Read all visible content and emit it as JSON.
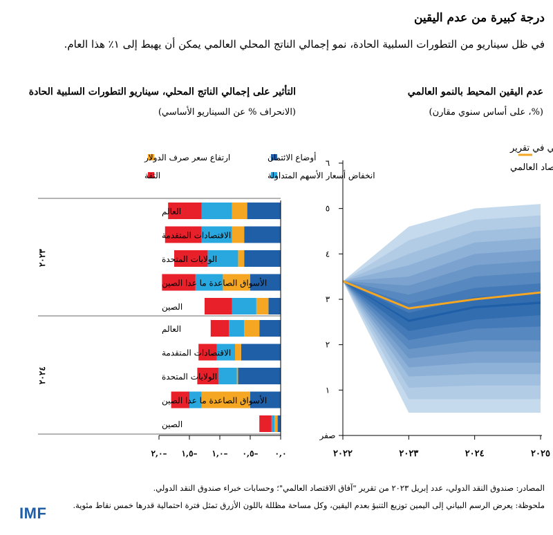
{
  "header": {
    "title": "درجة كبيرة من عدم اليقين",
    "subtitle": "في ظل سيناريو من التطورات السلبية الحادة، نمو إجمالي الناتج المحلي العالمي يمكن أن يهبط إلى ١٪ هذا العام."
  },
  "colors": {
    "credit": "#1f5fa8",
    "equity": "#29a8e0",
    "dollar": "#f5a623",
    "confidence": "#e8202a",
    "baseline": "#f5a623",
    "fan_dark": "#1f5fa8",
    "logo": "#1f5fa8"
  },
  "chart_data": [
    {
      "type": "area",
      "title": "عدم اليقين المحيط بالنمو العالمي",
      "subtitle": "(%، على أساس سنوي مقارن)",
      "x": [
        "٢٠٢٢",
        "٢٠٢٣",
        "٢٠٢٤",
        "٢٠٢٥"
      ],
      "x_values": [
        2022,
        2023,
        2024,
        2025
      ],
      "ylim": [
        0,
        6
      ],
      "y_ticks": [
        0,
        1,
        2,
        3,
        4,
        5,
        6
      ],
      "y_tick_labels": [
        "صفر",
        "١",
        "٢",
        "٣",
        "٤",
        "٥",
        "٦"
      ],
      "legend": {
        "label": "توقعات السيناريو الأساسي في تقرير آفاق الاقتصاد العالمي"
      },
      "baseline": [
        3.4,
        2.8,
        3.0,
        3.15
      ],
      "bands": [
        {
          "lower": [
            3.4,
            0.5,
            0.5,
            0.5
          ],
          "upper": [
            3.4,
            4.6,
            5.0,
            5.1
          ]
        },
        {
          "lower": [
            3.4,
            0.8,
            0.8,
            0.8
          ],
          "upper": [
            3.4,
            4.3,
            4.75,
            4.85
          ]
        },
        {
          "lower": [
            3.4,
            1.05,
            1.1,
            1.1
          ],
          "upper": [
            3.4,
            4.0,
            4.5,
            4.6
          ]
        },
        {
          "lower": [
            3.4,
            1.3,
            1.35,
            1.35
          ],
          "upper": [
            3.4,
            3.75,
            4.25,
            4.35
          ]
        },
        {
          "lower": [
            3.4,
            1.5,
            1.6,
            1.6
          ],
          "upper": [
            3.4,
            3.5,
            4.0,
            4.1
          ]
        },
        {
          "lower": [
            3.4,
            1.7,
            1.85,
            1.85
          ],
          "upper": [
            3.4,
            3.3,
            3.75,
            3.85
          ]
        },
        {
          "lower": [
            3.4,
            1.9,
            2.1,
            2.1
          ],
          "upper": [
            3.4,
            3.1,
            3.5,
            3.6
          ]
        },
        {
          "lower": [
            3.4,
            2.1,
            2.35,
            2.4
          ],
          "upper": [
            3.4,
            2.9,
            3.25,
            3.35
          ]
        },
        {
          "lower": [
            3.4,
            2.3,
            2.55,
            2.65
          ],
          "upper": [
            3.4,
            2.7,
            3.05,
            3.15
          ]
        },
        {
          "lower": [
            3.4,
            2.5,
            2.8,
            2.9
          ],
          "upper": [
            3.4,
            2.55,
            2.85,
            2.95
          ]
        }
      ]
    },
    {
      "type": "bar",
      "title": "التأثير على إجمالي الناتج المحلي، سيناريو التطورات السلبية الحادة",
      "subtitle": "(الانحراف % عن السيناريو الأساسي)",
      "xlim": [
        -2.0,
        0.0
      ],
      "x_ticks": [
        0,
        -0.5,
        -1.0,
        -1.5,
        -2.0
      ],
      "x_tick_labels": [
        "٠,٠",
        "٠,٥–",
        "١,٠–",
        "١,٥–",
        "٢,٠–"
      ],
      "legend": [
        {
          "key": "credit",
          "label": "أوضاع الائتمان"
        },
        {
          "key": "dollar",
          "label": "ارتفاع سعر صرف الدولار"
        },
        {
          "key": "equity",
          "label": "انخفاض أسعار الأسهم المتداولة"
        },
        {
          "key": "confidence",
          "label": "الثقة"
        }
      ],
      "series_order": [
        "credit",
        "dollar",
        "equity",
        "confidence"
      ],
      "groups": [
        {
          "label": "٢٠٢٣",
          "rows": [
            {
              "label": "العالم",
              "values": {
                "credit": -0.55,
                "dollar": -0.25,
                "equity": -0.5,
                "confidence": -0.55
              }
            },
            {
              "label": "الاقتصادات المتقدمة",
              "values": {
                "credit": -0.6,
                "dollar": -0.2,
                "equity": -0.5,
                "confidence": -0.6
              }
            },
            {
              "label": "الولايات المتحدة",
              "values": {
                "credit": -0.6,
                "dollar": -0.1,
                "equity": -0.5,
                "confidence": -0.55
              }
            },
            {
              "label": "الأسواق الصاعدة ما عدا الصين",
              "values": {
                "credit": -0.5,
                "dollar": -0.45,
                "equity": -0.45,
                "confidence": -0.55
              }
            },
            {
              "label": "الصين",
              "values": {
                "credit": -0.2,
                "dollar": -0.2,
                "equity": -0.4,
                "confidence": -0.45
              }
            }
          ]
        },
        {
          "label": "٢٠٢٤",
          "rows": [
            {
              "label": "العالم",
              "values": {
                "credit": -0.35,
                "dollar": -0.25,
                "equity": -0.25,
                "confidence": -0.3
              }
            },
            {
              "label": "الاقتصادات المتقدمة",
              "values": {
                "credit": -0.65,
                "dollar": -0.1,
                "equity": -0.3,
                "confidence": -0.3
              }
            },
            {
              "label": "الولايات المتحدة",
              "values": {
                "credit": -0.7,
                "dollar": -0.02,
                "equity": -0.3,
                "confidence": -0.35
              }
            },
            {
              "label": "الأسواق الصاعدة ما عدا الصين",
              "values": {
                "credit": -0.5,
                "dollar": -0.8,
                "equity": -0.2,
                "confidence": -0.3
              }
            },
            {
              "label": "الصين",
              "values": {
                "credit": -0.05,
                "dollar": -0.05,
                "equity": -0.05,
                "confidence": -0.2
              }
            }
          ]
        }
      ]
    }
  ],
  "footer": {
    "sources": "المصادر: صندوق النقد الدولي، عدد إبريل ٢٠٢٣ من تقرير \"آفاق الاقتصاد العالمي\"؛ وحسابات خبراء صندوق النقد الدولي.",
    "note": "ملحوظة: يعرض الرسم البياني إلى اليمين توزيع التنبؤ بعدم اليقين، وكل مساحة مظللة باللون الأزرق تمثل فترة احتمالية قدرها خمس نقاط مئوية.",
    "logo_text": "IMF"
  }
}
